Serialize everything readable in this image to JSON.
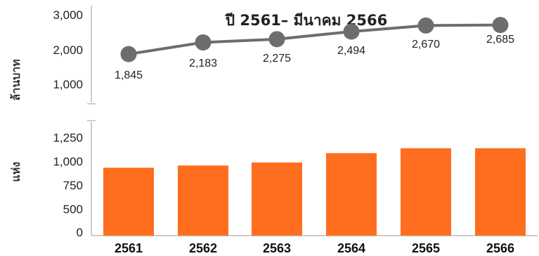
{
  "title": "ปี 2561– มีนาคม 2566",
  "colors": {
    "line": "#6d6d6d",
    "marker": "#6d6d6d",
    "bar": "#ff6e1e",
    "axis": "#bbbbbb"
  },
  "chart_data": [
    {
      "type": "line",
      "ylabel": "ล้านบาท",
      "ylim": [
        0,
        3000
      ],
      "yticks": [
        "1,000",
        "2,000",
        "3,000"
      ],
      "categories": [
        "2561",
        "2562",
        "2563",
        "2564",
        "2565",
        "2566"
      ],
      "values": [
        1845,
        2183,
        2275,
        2494,
        2670,
        2685
      ],
      "data_labels": [
        "1,845",
        "2,183",
        "2,275",
        "2,494",
        "2,670",
        "2,685"
      ],
      "data_label_position": [
        "below",
        "below",
        "below",
        "below",
        "below",
        "above"
      ]
    },
    {
      "type": "bar",
      "ylabel": "แห่ง",
      "ylim": [
        0,
        1400
      ],
      "yticks": [
        "0",
        "500",
        "750",
        "1,000",
        "1,250"
      ],
      "categories": [
        "2561",
        "2562",
        "2563",
        "2564",
        "2565",
        "2566"
      ],
      "values": [
        905,
        935,
        975,
        1100,
        1165,
        1165
      ]
    }
  ]
}
